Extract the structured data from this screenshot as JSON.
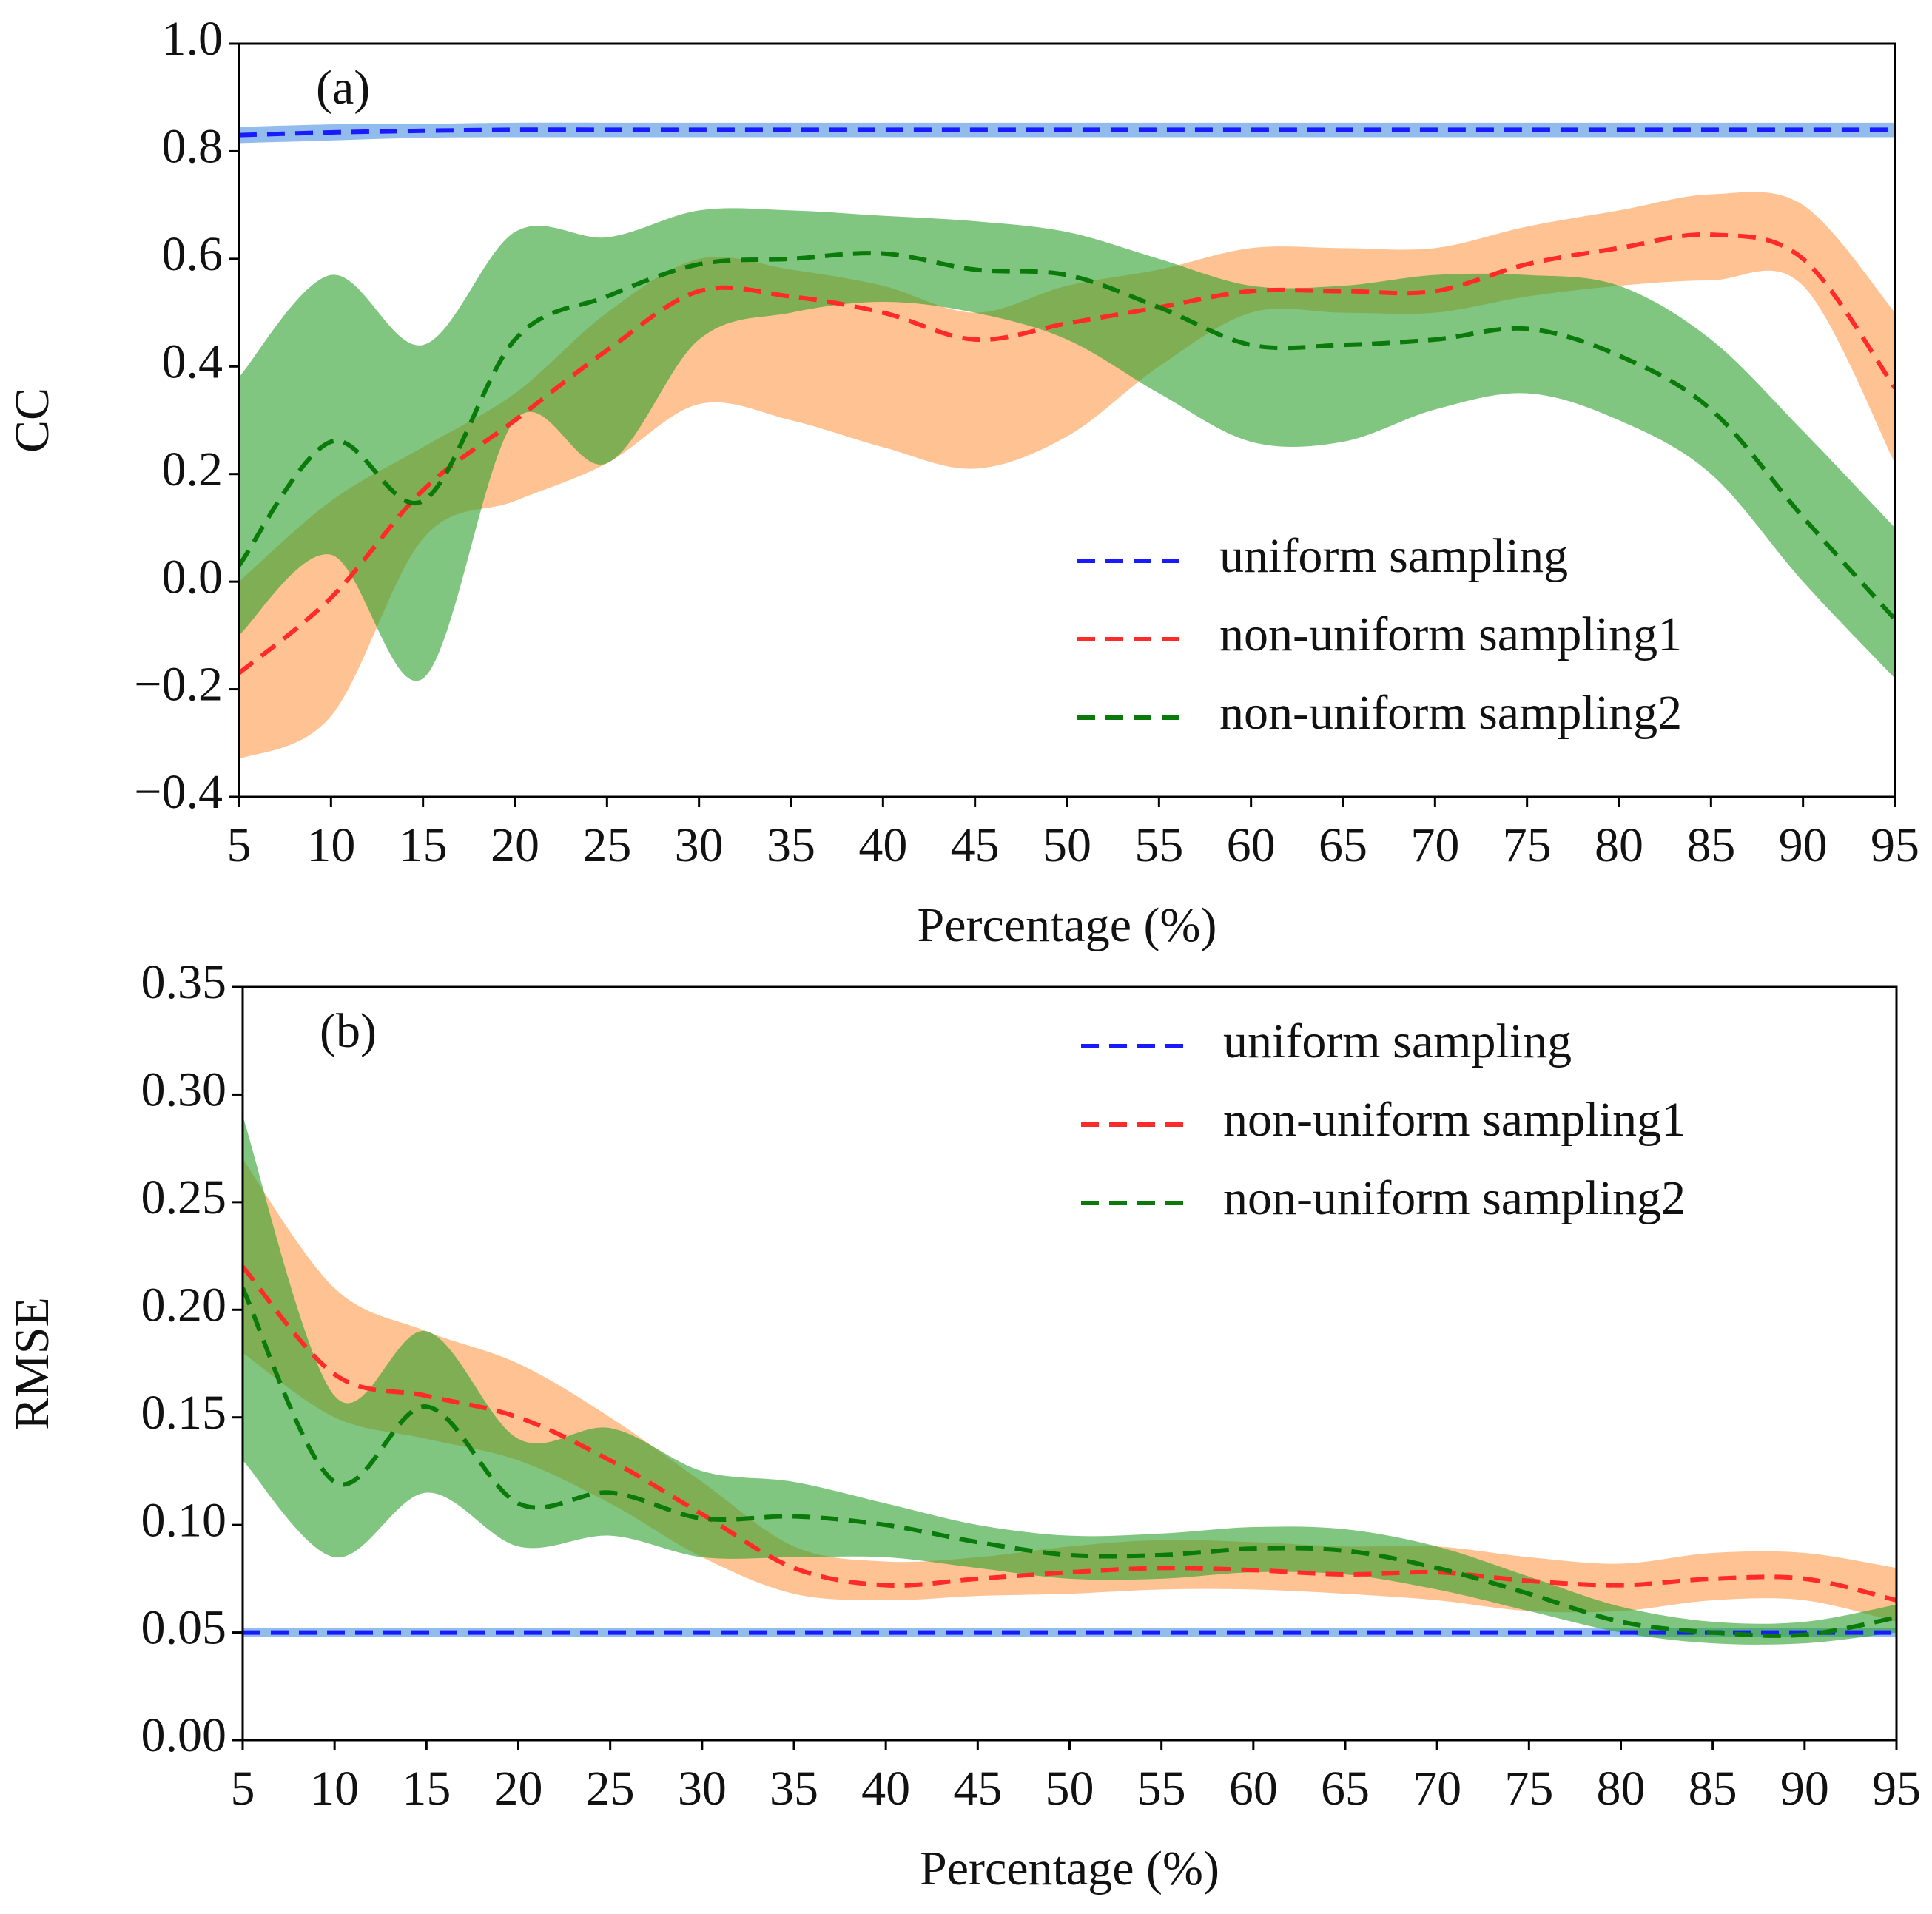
{
  "chart_data": [
    {
      "type": "line",
      "panel_label": "(a)",
      "y_label": "CC",
      "x_label": "Percentage (%)",
      "x": [
        5,
        10,
        15,
        20,
        25,
        30,
        35,
        40,
        45,
        50,
        55,
        60,
        65,
        70,
        75,
        80,
        85,
        90,
        95
      ],
      "xlim": [
        5,
        95
      ],
      "xticks": [
        5,
        10,
        15,
        20,
        25,
        30,
        35,
        40,
        45,
        50,
        55,
        60,
        65,
        70,
        75,
        80,
        85,
        90,
        95
      ],
      "ylim": [
        -0.4,
        1.0
      ],
      "yticks": [
        {
          "value": -0.4,
          "label": "−0.4"
        },
        {
          "value": -0.2,
          "label": "−0.2"
        },
        {
          "value": 0,
          "label": "0.0"
        },
        0.2,
        0.4,
        0.6,
        0.8,
        {
          "value": 1.0,
          "label": "1.0"
        }
      ],
      "legend": "lower right",
      "series": [
        {
          "name": "uniform sampling",
          "color": "#1a1aff",
          "band_color": "#4a90e2",
          "values": [
            0.83,
            0.835,
            0.838,
            0.84,
            0.84,
            0.84,
            0.84,
            0.84,
            0.84,
            0.84,
            0.84,
            0.84,
            0.84,
            0.84,
            0.84,
            0.84,
            0.84,
            0.84,
            0.84
          ],
          "lower": [
            0.815,
            0.82,
            0.825,
            0.826,
            0.826,
            0.826,
            0.826,
            0.826,
            0.826,
            0.826,
            0.826,
            0.826,
            0.826,
            0.826,
            0.826,
            0.826,
            0.826,
            0.826,
            0.826
          ],
          "upper": [
            0.845,
            0.85,
            0.851,
            0.853,
            0.853,
            0.853,
            0.853,
            0.853,
            0.853,
            0.853,
            0.853,
            0.853,
            0.853,
            0.853,
            0.853,
            0.853,
            0.853,
            0.853,
            0.853
          ]
        },
        {
          "name": "non-uniform sampling1",
          "color": "#ff2a2a",
          "band_color": "#ff9a4a",
          "values": [
            -0.17,
            -0.03,
            0.17,
            0.3,
            0.43,
            0.54,
            0.53,
            0.5,
            0.45,
            0.48,
            0.51,
            0.54,
            0.54,
            0.54,
            0.59,
            0.62,
            0.645,
            0.6,
            0.36
          ],
          "lower": [
            -0.33,
            -0.25,
            0.08,
            0.15,
            0.22,
            0.33,
            0.3,
            0.25,
            0.21,
            0.27,
            0.4,
            0.5,
            0.5,
            0.5,
            0.53,
            0.55,
            0.56,
            0.55,
            0.22
          ],
          "upper": [
            0.0,
            0.15,
            0.25,
            0.35,
            0.5,
            0.6,
            0.58,
            0.55,
            0.5,
            0.55,
            0.58,
            0.62,
            0.62,
            0.62,
            0.66,
            0.69,
            0.72,
            0.7,
            0.5
          ]
        },
        {
          "name": "non-uniform sampling2",
          "color": "#0a7a0a",
          "band_color": "#2ca02c",
          "values": [
            0.03,
            0.26,
            0.15,
            0.45,
            0.53,
            0.59,
            0.6,
            0.61,
            0.58,
            0.57,
            0.51,
            0.44,
            0.44,
            0.45,
            0.47,
            0.42,
            0.32,
            0.12,
            -0.07
          ],
          "lower": [
            -0.1,
            0.05,
            -0.18,
            0.3,
            0.22,
            0.45,
            0.5,
            0.52,
            0.5,
            0.45,
            0.35,
            0.26,
            0.26,
            0.32,
            0.35,
            0.3,
            0.2,
            0.0,
            -0.18
          ],
          "upper": [
            0.38,
            0.57,
            0.44,
            0.65,
            0.64,
            0.69,
            0.69,
            0.68,
            0.67,
            0.65,
            0.6,
            0.55,
            0.55,
            0.57,
            0.57,
            0.55,
            0.45,
            0.28,
            0.1
          ]
        }
      ]
    },
    {
      "type": "line",
      "panel_label": "(b)",
      "y_label": "RMSE",
      "x_label": "Percentage (%)",
      "x": [
        5,
        10,
        15,
        20,
        25,
        30,
        35,
        40,
        45,
        50,
        55,
        60,
        65,
        70,
        75,
        80,
        85,
        90,
        95
      ],
      "xlim": [
        5,
        95
      ],
      "xticks": [
        5,
        10,
        15,
        20,
        25,
        30,
        35,
        40,
        45,
        50,
        55,
        60,
        65,
        70,
        75,
        80,
        85,
        90,
        95
      ],
      "ylim": [
        0,
        0.35
      ],
      "yticks": [
        {
          "value": 0,
          "label": "0.00"
        },
        0.05,
        {
          "value": 0.1,
          "label": "0.10"
        },
        0.15,
        {
          "value": 0.2,
          "label": "0.20"
        },
        0.25,
        {
          "value": 0.3,
          "label": "0.30"
        },
        0.35
      ],
      "legend": "upper right",
      "series": [
        {
          "name": "uniform sampling",
          "color": "#1a1aff",
          "band_color": "#4a90e2",
          "values": [
            0.05,
            0.05,
            0.05,
            0.05,
            0.05,
            0.05,
            0.05,
            0.05,
            0.05,
            0.05,
            0.05,
            0.05,
            0.05,
            0.05,
            0.05,
            0.05,
            0.05,
            0.05,
            0.05
          ],
          "lower": [
            0.048,
            0.048,
            0.048,
            0.048,
            0.048,
            0.048,
            0.048,
            0.048,
            0.048,
            0.048,
            0.048,
            0.048,
            0.048,
            0.048,
            0.048,
            0.048,
            0.048,
            0.048,
            0.048
          ],
          "upper": [
            0.052,
            0.052,
            0.052,
            0.052,
            0.052,
            0.052,
            0.052,
            0.052,
            0.052,
            0.052,
            0.052,
            0.052,
            0.052,
            0.052,
            0.052,
            0.052,
            0.052,
            0.052,
            0.052
          ]
        },
        {
          "name": "non-uniform sampling1",
          "color": "#ff2a2a",
          "band_color": "#ff9a4a",
          "values": [
            0.22,
            0.17,
            0.16,
            0.15,
            0.13,
            0.105,
            0.08,
            0.072,
            0.075,
            0.078,
            0.08,
            0.079,
            0.077,
            0.078,
            0.074,
            0.072,
            0.075,
            0.075,
            0.065
          ],
          "lower": [
            0.18,
            0.15,
            0.14,
            0.13,
            0.11,
            0.085,
            0.068,
            0.065,
            0.067,
            0.068,
            0.07,
            0.07,
            0.068,
            0.065,
            0.06,
            0.06,
            0.065,
            0.065,
            0.055
          ],
          "upper": [
            0.27,
            0.21,
            0.19,
            0.175,
            0.15,
            0.12,
            0.09,
            0.083,
            0.085,
            0.09,
            0.093,
            0.092,
            0.09,
            0.09,
            0.085,
            0.082,
            0.087,
            0.087,
            0.08
          ]
        },
        {
          "name": "non-uniform sampling2",
          "color": "#0a7a0a",
          "band_color": "#2ca02c",
          "values": [
            0.21,
            0.12,
            0.155,
            0.11,
            0.115,
            0.103,
            0.104,
            0.1,
            0.092,
            0.086,
            0.086,
            0.089,
            0.088,
            0.08,
            0.068,
            0.055,
            0.05,
            0.049,
            0.057
          ],
          "lower": [
            0.13,
            0.085,
            0.115,
            0.09,
            0.095,
            0.085,
            0.085,
            0.085,
            0.08,
            0.075,
            0.075,
            0.078,
            0.077,
            0.07,
            0.06,
            0.05,
            0.045,
            0.045,
            0.05
          ],
          "upper": [
            0.29,
            0.16,
            0.19,
            0.14,
            0.145,
            0.125,
            0.12,
            0.11,
            0.1,
            0.095,
            0.096,
            0.099,
            0.098,
            0.09,
            0.076,
            0.062,
            0.055,
            0.055,
            0.063
          ]
        }
      ]
    }
  ]
}
